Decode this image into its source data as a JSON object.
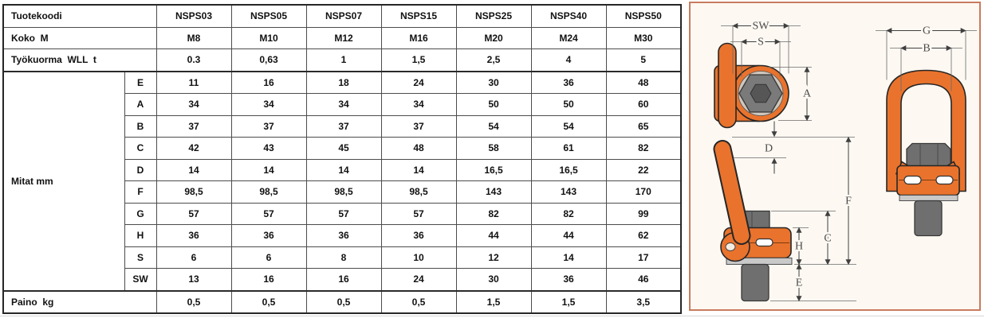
{
  "table": {
    "header_rows": [
      {
        "label": "Tuotekoodi",
        "values": [
          "NSPS03",
          "NSPS05",
          "NSPS07",
          "NSPS15",
          "NSPS25",
          "NSPS40",
          "NSPS50"
        ]
      },
      {
        "label": "Koko  M",
        "values": [
          "M8",
          "M10",
          "M12",
          "M16",
          "M20",
          "M24",
          "M30"
        ]
      },
      {
        "label": "Työkuorma  WLL  t",
        "values": [
          "0.3",
          "0,63",
          "1",
          "1,5",
          "2,5",
          "4",
          "5"
        ]
      }
    ],
    "dims_group_label": "Mitat mm",
    "dim_rows": [
      {
        "key": "E",
        "values": [
          "11",
          "16",
          "18",
          "24",
          "30",
          "36",
          "48"
        ]
      },
      {
        "key": "A",
        "values": [
          "34",
          "34",
          "34",
          "34",
          "50",
          "50",
          "60"
        ]
      },
      {
        "key": "B",
        "values": [
          "37",
          "37",
          "37",
          "37",
          "54",
          "54",
          "65"
        ]
      },
      {
        "key": "C",
        "values": [
          "42",
          "43",
          "45",
          "48",
          "58",
          "61",
          "82"
        ]
      },
      {
        "key": "D",
        "values": [
          "14",
          "14",
          "14",
          "14",
          "16,5",
          "16,5",
          "22"
        ]
      },
      {
        "key": "F",
        "values": [
          "98,5",
          "98,5",
          "98,5",
          "98,5",
          "143",
          "143",
          "170"
        ]
      },
      {
        "key": "G",
        "values": [
          "57",
          "57",
          "57",
          "57",
          "82",
          "82",
          "99"
        ]
      },
      {
        "key": "H",
        "values": [
          "36",
          "36",
          "36",
          "36",
          "44",
          "44",
          "62"
        ]
      },
      {
        "key": "S",
        "values": [
          "6",
          "6",
          "8",
          "10",
          "12",
          "14",
          "17"
        ]
      },
      {
        "key": "SW",
        "values": [
          "13",
          "16",
          "16",
          "24",
          "30",
          "36",
          "46"
        ]
      }
    ],
    "footer_row": {
      "label": "Paino  kg",
      "values": [
        "0,5",
        "0,5",
        "0,5",
        "0,5",
        "1,5",
        "1,5",
        "3,5"
      ]
    }
  },
  "diagram": {
    "dimension_labels": {
      "sw": "SW",
      "s": "S",
      "a": "A",
      "d": "D",
      "f": "F",
      "c": "C",
      "h": "H",
      "e": "E",
      "g": "G",
      "b": "B"
    },
    "colors": {
      "body_orange": "#e9732d",
      "outline": "#262626",
      "steel_gray": "#7a7a7a",
      "washer_gray": "#c9c9c9",
      "panel_border": "#c97b5e",
      "panel_background": "#fdf8f2",
      "dimension_line": "#3f3f3f"
    }
  }
}
